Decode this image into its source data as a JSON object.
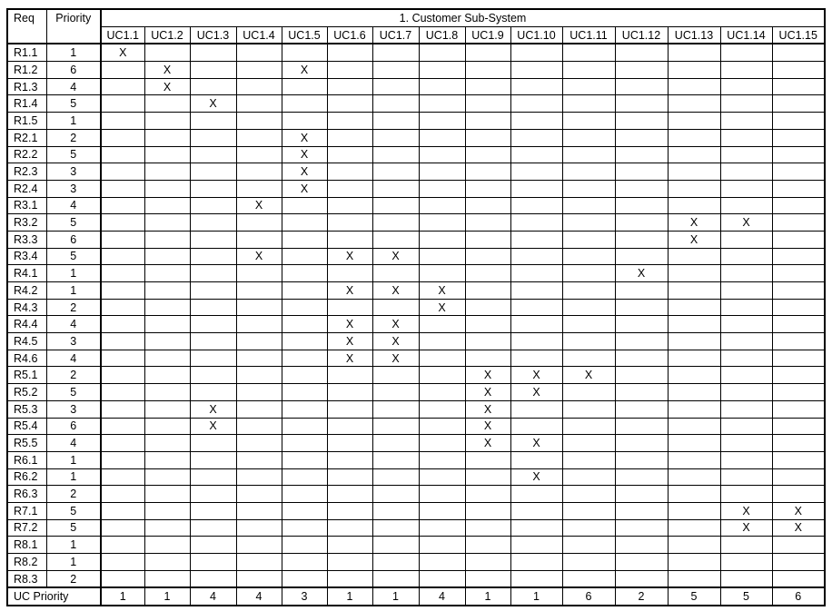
{
  "header": {
    "req_label": "Req",
    "priority_label": "Priority",
    "group_title": "1. Customer Sub-System"
  },
  "use_cases": [
    "UC1.1",
    "UC1.2",
    "UC1.3",
    "UC1.4",
    "UC1.5",
    "UC1.6",
    "UC1.7",
    "UC1.8",
    "UC1.9",
    "UC1.10",
    "UC1.11",
    "UC1.12",
    "UC1.13",
    "UC1.14",
    "UC1.15"
  ],
  "mark_symbol": "X",
  "rows": [
    {
      "req": "R1.1",
      "priority": "1",
      "marks": [
        1
      ]
    },
    {
      "req": "R1.2",
      "priority": "6",
      "marks": [
        2,
        5
      ]
    },
    {
      "req": "R1.3",
      "priority": "4",
      "marks": [
        2
      ]
    },
    {
      "req": "R1.4",
      "priority": "5",
      "marks": [
        3
      ]
    },
    {
      "req": "R1.5",
      "priority": "1",
      "marks": []
    },
    {
      "req": "R2.1",
      "priority": "2",
      "marks": [
        5
      ]
    },
    {
      "req": "R2.2",
      "priority": "5",
      "marks": [
        5
      ]
    },
    {
      "req": "R2.3",
      "priority": "3",
      "marks": [
        5
      ]
    },
    {
      "req": "R2.4",
      "priority": "3",
      "marks": [
        5
      ]
    },
    {
      "req": "R3.1",
      "priority": "4",
      "marks": [
        4
      ]
    },
    {
      "req": "R3.2",
      "priority": "5",
      "marks": [
        13,
        14
      ]
    },
    {
      "req": "R3.3",
      "priority": "6",
      "marks": [
        13
      ]
    },
    {
      "req": "R3.4",
      "priority": "5",
      "marks": [
        4,
        6,
        7
      ]
    },
    {
      "req": "R4.1",
      "priority": "1",
      "marks": [
        12
      ]
    },
    {
      "req": "R4.2",
      "priority": "1",
      "marks": [
        6,
        7,
        8
      ]
    },
    {
      "req": "R4.3",
      "priority": "2",
      "marks": [
        8
      ]
    },
    {
      "req": "R4.4",
      "priority": "4",
      "marks": [
        6,
        7
      ]
    },
    {
      "req": "R4.5",
      "priority": "3",
      "marks": [
        6,
        7
      ]
    },
    {
      "req": "R4.6",
      "priority": "4",
      "marks": [
        6,
        7
      ]
    },
    {
      "req": "R5.1",
      "priority": "2",
      "marks": [
        9,
        10,
        11
      ]
    },
    {
      "req": "R5.2",
      "priority": "5",
      "marks": [
        9,
        10
      ]
    },
    {
      "req": "R5.3",
      "priority": "3",
      "marks": [
        3,
        9
      ]
    },
    {
      "req": "R5.4",
      "priority": "6",
      "marks": [
        3,
        9
      ]
    },
    {
      "req": "R5.5",
      "priority": "4",
      "marks": [
        9,
        10
      ]
    },
    {
      "req": "R6.1",
      "priority": "1",
      "marks": []
    },
    {
      "req": "R6.2",
      "priority": "1",
      "marks": [
        10
      ]
    },
    {
      "req": "R6.3",
      "priority": "2",
      "marks": []
    },
    {
      "req": "R7.1",
      "priority": "5",
      "marks": [
        14,
        15
      ]
    },
    {
      "req": "R7.2",
      "priority": "5",
      "marks": [
        14,
        15
      ]
    },
    {
      "req": "R8.1",
      "priority": "1",
      "marks": []
    },
    {
      "req": "R8.2",
      "priority": "1",
      "marks": []
    },
    {
      "req": "R8.3",
      "priority": "2",
      "marks": []
    }
  ],
  "footer": {
    "label": "UC Priority",
    "values": [
      "1",
      "1",
      "4",
      "4",
      "3",
      "1",
      "1",
      "4",
      "1",
      "1",
      "6",
      "2",
      "5",
      "5",
      "6"
    ]
  }
}
